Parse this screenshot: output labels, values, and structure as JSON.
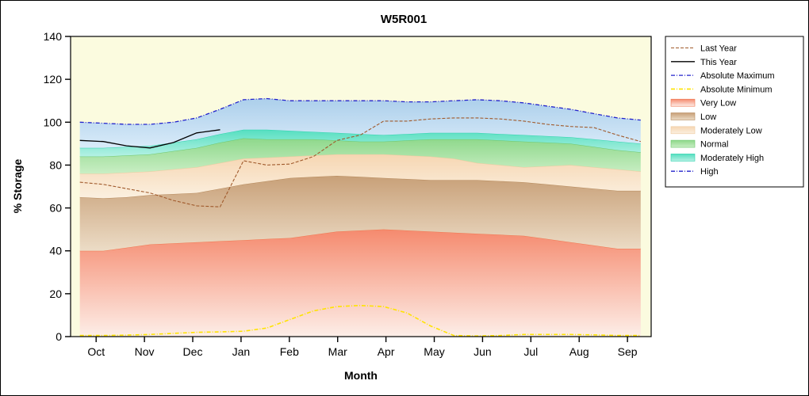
{
  "chart_data": {
    "type": "area",
    "title": "W5R001",
    "xlabel": "Month",
    "ylabel": "% Storage",
    "ylim": [
      0,
      140
    ],
    "yticks": [
      0,
      20,
      40,
      60,
      80,
      100,
      120,
      140
    ],
    "x_tick_labels": [
      "Oct",
      "Nov",
      "Dec",
      "Jan",
      "Feb",
      "Mar",
      "Apr",
      "May",
      "Jun",
      "Jul",
      "Aug",
      "Sep"
    ],
    "tick_start_frac": 0.044,
    "tick_step_frac": 0.0832,
    "x_start_frac": 0.016,
    "x_end_frac": 0.982,
    "plot_bg": "#fbfbdf",
    "grid": false,
    "legend_position": "right",
    "bands": [
      {
        "name": "Very Low",
        "colors": [
          "#f58a6e",
          "#fdeee8"
        ],
        "edge": "#f0764f",
        "values": [
          40,
          40,
          41.5,
          43,
          43.5,
          44,
          44.5,
          45,
          45.5,
          46,
          47.5,
          49,
          49.5,
          50,
          49.5,
          49,
          48.5,
          48,
          47.5,
          47,
          45.5,
          44,
          42.5,
          41,
          41
        ]
      },
      {
        "name": "Low",
        "colors": [
          "#c8a078",
          "#ecdcc6"
        ],
        "edge": "#b5895b",
        "values": [
          65,
          64.5,
          65,
          66,
          66.5,
          67,
          69,
          71,
          72.5,
          74,
          74.5,
          75,
          74.5,
          74,
          73.5,
          73,
          73,
          73,
          72.5,
          72,
          71,
          70,
          69,
          68,
          68
        ]
      },
      {
        "name": "Moderately Low",
        "colors": [
          "#f6d6b2",
          "#fbf0e0"
        ],
        "edge": "#eeca9e",
        "values": [
          76,
          76,
          76.5,
          77,
          78,
          79,
          81,
          83,
          83.5,
          84,
          84.5,
          85,
          85,
          85,
          84.5,
          84,
          83,
          81,
          80,
          79,
          79.5,
          80,
          79,
          78,
          77
        ]
      },
      {
        "name": "Normal",
        "colors": [
          "#8ed88b",
          "#c9eec4"
        ],
        "edge": "#6cc76c",
        "values": [
          84,
          84,
          84.5,
          85,
          86.5,
          88,
          90.5,
          92.5,
          92,
          92,
          92,
          91.5,
          91,
          91,
          91.5,
          92,
          92,
          92,
          91.5,
          91,
          90.5,
          90,
          88.5,
          87,
          86
        ]
      },
      {
        "name": "Moderately High",
        "colors": [
          "#55dfc0",
          "#b5f1e4"
        ],
        "edge": "#2ed2ad",
        "values": [
          88,
          88,
          88.5,
          89,
          90.5,
          92,
          94.5,
          96.5,
          96.5,
          96,
          95.5,
          95,
          94.5,
          94,
          94.5,
          95,
          95,
          95,
          94.5,
          94,
          93.5,
          93,
          92,
          91,
          90
        ]
      },
      {
        "name": "High",
        "colors": [
          "#accfeb",
          "#d9ebf9"
        ],
        "edge": null,
        "values": [
          100,
          99.5,
          99,
          99,
          100,
          102,
          106,
          110.5,
          111,
          110,
          110,
          110,
          110,
          110,
          109.5,
          109.5,
          110,
          110.5,
          110,
          109,
          107.5,
          106,
          104,
          102,
          101
        ]
      }
    ],
    "lines": [
      {
        "name": "Absolute Maximum",
        "color": "#2222cc",
        "dash": "5 2 1 2",
        "width": 1.3,
        "values": [
          100,
          99.5,
          99,
          99,
          100,
          102,
          106,
          110.5,
          111,
          110,
          110,
          110,
          110,
          110,
          109.5,
          109.5,
          110,
          110.5,
          110,
          109,
          107.5,
          106,
          104,
          102,
          101
        ]
      },
      {
        "name": "Absolute Minimum",
        "color": "#ffe400",
        "dash": "5 2 1 2",
        "width": 1.6,
        "values": [
          0.5,
          0.5,
          0.7,
          1,
          1.5,
          2,
          2.2,
          2.5,
          4,
          8,
          12,
          14,
          14.5,
          14,
          11,
          5,
          0.5,
          0.3,
          0.5,
          1,
          1,
          1,
          0.8,
          0.5,
          0.5
        ]
      },
      {
        "name": "Last Year",
        "color": "#a05a2c",
        "dash": "4 2",
        "width": 1.1,
        "values": [
          72,
          71,
          69,
          67,
          63.5,
          61,
          60.5,
          82,
          80,
          80.5,
          84,
          91.5,
          94,
          100.5,
          100.5,
          101.5,
          102,
          102,
          101.5,
          100.5,
          99,
          98,
          97.5,
          94,
          91
        ]
      },
      {
        "name": "This Year",
        "color": "#000000",
        "dash": "",
        "width": 1.3,
        "values": [
          91.5,
          91,
          89,
          88,
          90.5,
          95,
          96.5,
          null,
          null,
          null,
          null,
          null,
          null,
          null,
          null,
          null,
          null,
          null,
          null,
          null,
          null,
          null,
          null,
          null,
          null
        ]
      }
    ]
  },
  "legend": {
    "items": [
      {
        "label": "Last Year",
        "swatch": "line",
        "color": "#a05a2c",
        "dash": "4 2",
        "width": 1.1
      },
      {
        "label": "This Year",
        "swatch": "line",
        "color": "#000000",
        "dash": "",
        "width": 1.3
      },
      {
        "label": "Absolute Maximum",
        "swatch": "line",
        "color": "#2222cc",
        "dash": "5 2 1 2",
        "width": 1.3
      },
      {
        "label": "Absolute Minimum",
        "swatch": "line",
        "color": "#ffe400",
        "dash": "5 2 1 2",
        "width": 1.6
      },
      {
        "label": "Very Low",
        "swatch": "fill",
        "band": 0
      },
      {
        "label": "Low",
        "swatch": "fill",
        "band": 1
      },
      {
        "label": "Moderately Low",
        "swatch": "fill",
        "band": 2
      },
      {
        "label": "Normal",
        "swatch": "fill",
        "band": 3
      },
      {
        "label": "Moderately High",
        "swatch": "fill",
        "band": 4
      },
      {
        "label": "High",
        "swatch": "line",
        "color": "#2222cc",
        "dash": "5 2 1 2",
        "width": 1.3
      }
    ]
  }
}
